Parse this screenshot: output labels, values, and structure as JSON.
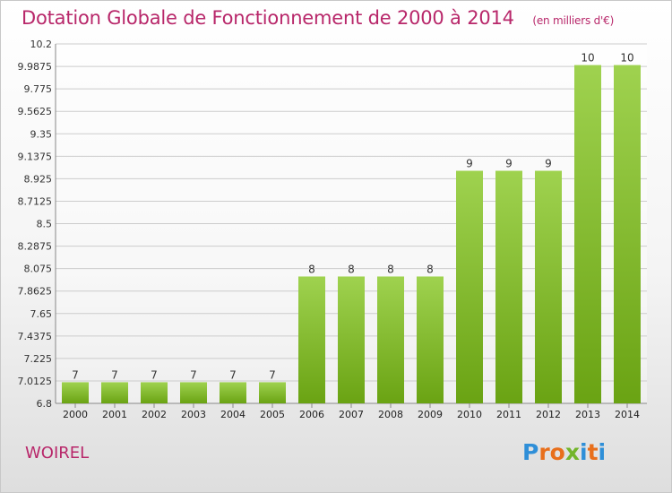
{
  "header": {
    "title": "Dotation Globale de Fonctionnement de 2000 à 2014",
    "subtitle": "(en milliers d'€)"
  },
  "footer": {
    "commune": "WOIREL",
    "brand": "Proxiti"
  },
  "colors": {
    "title": "#b8276a",
    "bar_light": "#9fd24f",
    "bar_dark": "#6aa313",
    "brand_letters": [
      "#2f8fd8",
      "#e86f1c",
      "#e86f1c",
      "#73b52b",
      "#2f8fd8",
      "#e86f1c",
      "#2f8fd8"
    ]
  },
  "chart_data": {
    "type": "bar",
    "categories": [
      "2000",
      "2001",
      "2002",
      "2003",
      "2004",
      "2005",
      "2006",
      "2007",
      "2008",
      "2009",
      "2010",
      "2011",
      "2012",
      "2013",
      "2014"
    ],
    "values": [
      7,
      7,
      7,
      7,
      7,
      7,
      8,
      8,
      8,
      8,
      9,
      9,
      9,
      10,
      10
    ],
    "value_labels": [
      "7",
      "7",
      "7",
      "7",
      "7",
      "7",
      "8",
      "8",
      "8",
      "8",
      "9",
      "9",
      "9",
      "10",
      "10"
    ],
    "ylim": [
      6.8,
      10.2
    ],
    "yticks": [
      "6.8",
      "7.0125",
      "7.225",
      "7.4375",
      "7.65",
      "7.8625",
      "8.075",
      "8.2875",
      "8.5",
      "8.7125",
      "8.925",
      "9.1375",
      "9.35",
      "9.5625",
      "9.775",
      "9.9875",
      "10.2"
    ],
    "grid": true,
    "xlabel": "",
    "ylabel": ""
  }
}
